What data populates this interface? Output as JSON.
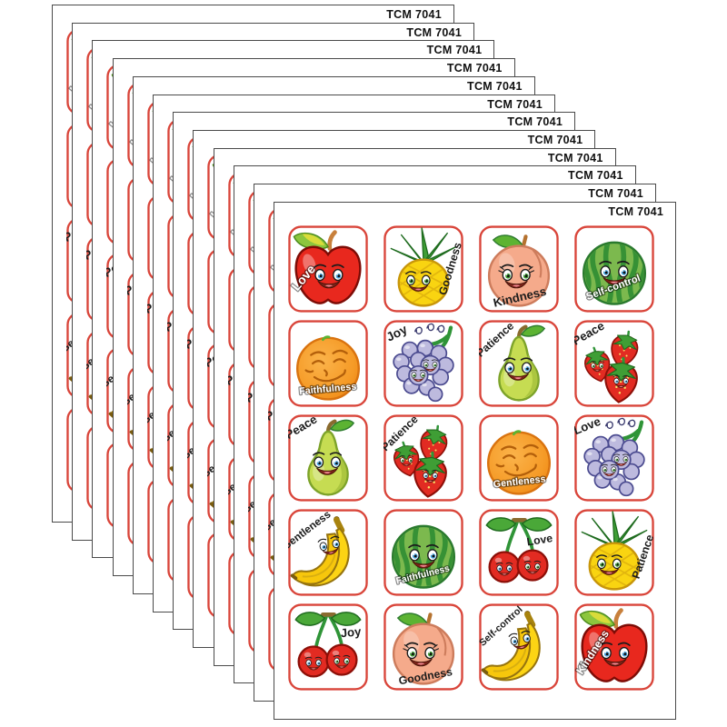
{
  "product_code": "TCM 7041",
  "stack": {
    "sheet_count": 12
  },
  "sheet_grid": {
    "columns": 4,
    "rows": 5
  },
  "colors": {
    "page_bg": "#ffffff",
    "sheet_bg": "#ffffff",
    "sheet_border": "#4a4a4a",
    "sticker_border": "#d9453a",
    "label_black": "#1c1c1c",
    "label_white": "#ffffff"
  },
  "stickers": [
    {
      "fruit": "apple",
      "word": "Love",
      "word_color": "white"
    },
    {
      "fruit": "pineapple",
      "word": "Goodness",
      "word_color": "black"
    },
    {
      "fruit": "peach",
      "word": "Kindness",
      "word_color": "black"
    },
    {
      "fruit": "watermelon",
      "word": "Self-control",
      "word_color": "white"
    },
    {
      "fruit": "orange",
      "word": "Faithfulness",
      "word_color": "white"
    },
    {
      "fruit": "grapes",
      "word": "Joy",
      "word_color": "black"
    },
    {
      "fruit": "pear",
      "word": "Patience",
      "word_color": "black"
    },
    {
      "fruit": "strawberries",
      "word": "Peace",
      "word_color": "black"
    },
    {
      "fruit": "pear",
      "word": "Peace",
      "word_color": "black"
    },
    {
      "fruit": "strawberries",
      "word": "Patience",
      "word_color": "black"
    },
    {
      "fruit": "orange",
      "word": "Gentleness",
      "word_color": "white"
    },
    {
      "fruit": "grapes",
      "word": "Love",
      "word_color": "black"
    },
    {
      "fruit": "banana",
      "word": "Gentleness",
      "word_color": "black"
    },
    {
      "fruit": "watermelon",
      "word": "Faithfulness",
      "word_color": "white"
    },
    {
      "fruit": "cherries",
      "word": "Love",
      "word_color": "black"
    },
    {
      "fruit": "pineapple",
      "word": "Patience",
      "word_color": "black"
    },
    {
      "fruit": "cherries",
      "word": "Joy",
      "word_color": "black"
    },
    {
      "fruit": "peach",
      "word": "Goodness",
      "word_color": "black"
    },
    {
      "fruit": "banana",
      "word": "Self-control",
      "word_color": "black"
    },
    {
      "fruit": "apple",
      "word": "Kindness",
      "word_color": "white"
    }
  ]
}
